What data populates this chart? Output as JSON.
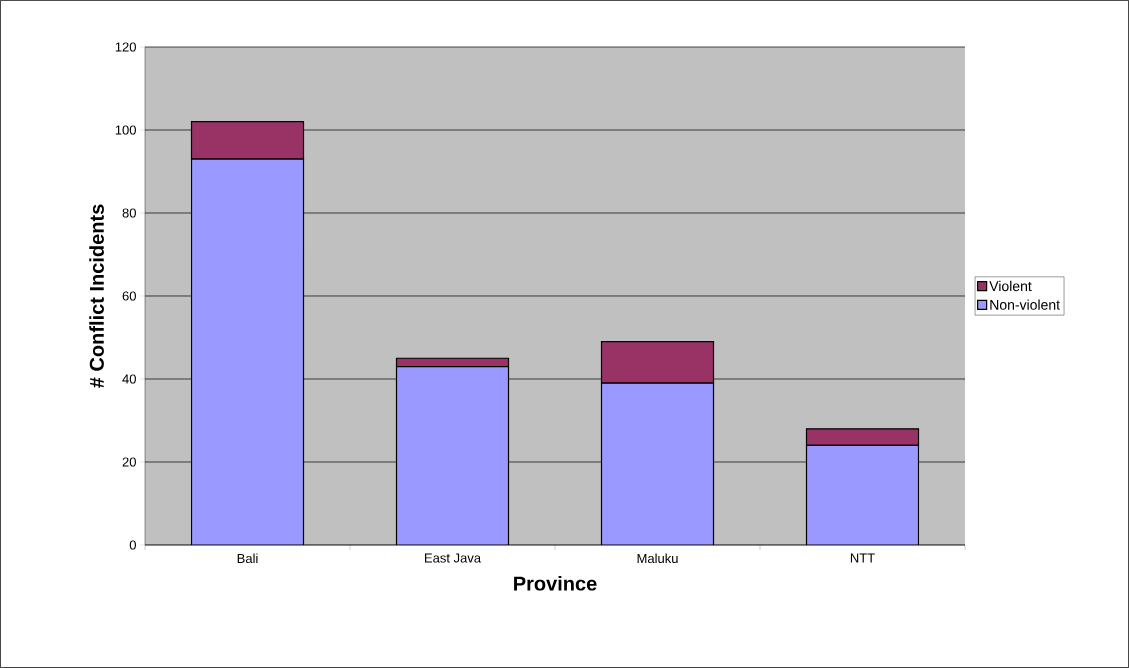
{
  "chart_data": {
    "type": "bar",
    "stacked": true,
    "xlabel": "Province",
    "ylabel": "# Conflict Incidents",
    "categories": [
      "Bali",
      "East Java",
      "Maluku",
      "NTT"
    ],
    "series": [
      {
        "name": "Non-violent",
        "color": "#9999ff",
        "values": [
          93,
          43,
          39,
          24
        ]
      },
      {
        "name": "Violent",
        "color": "#993366",
        "values": [
          9,
          2,
          10,
          4
        ]
      }
    ],
    "ylim": [
      0,
      120
    ],
    "yticks": [
      0,
      20,
      40,
      60,
      80,
      100,
      120
    ],
    "grid": "y",
    "legend": "right"
  }
}
